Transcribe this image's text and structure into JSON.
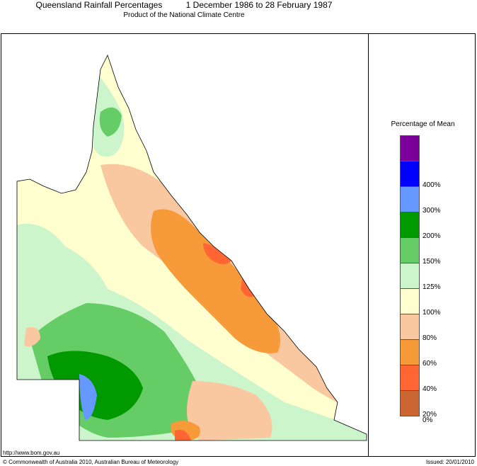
{
  "header": {
    "title": "Queensland Rainfall Percentages          1 December 1986 to 28 February 1987",
    "subtitle": "Product of the National Climate Centre"
  },
  "legend": {
    "title": "Percentage of Mean",
    "bands": [
      {
        "label": "",
        "color": "#7b0099"
      },
      {
        "label": "400%",
        "color": "#0000ff"
      },
      {
        "label": "300%",
        "color": "#6699ff"
      },
      {
        "label": "200%",
        "color": "#009900"
      },
      {
        "label": "150%",
        "color": "#66cc66"
      },
      {
        "label": "125%",
        "color": "#ccf5cc"
      },
      {
        "label": "100%",
        "color": "#ffffd0"
      },
      {
        "label": "80%",
        "color": "#f9c8a0"
      },
      {
        "label": "60%",
        "color": "#f79a3a"
      },
      {
        "label": "40%",
        "color": "#ff6633"
      },
      {
        "label": "20%",
        "color": "#cc6633"
      }
    ],
    "bottom_label": "0%"
  },
  "footer": {
    "url": "http://www.bom.gov.au",
    "copyright": "© Commonwealth of Australia 2010, Australian Bureau of Meteorology",
    "issued": "Issued: 20/01/2010"
  }
}
